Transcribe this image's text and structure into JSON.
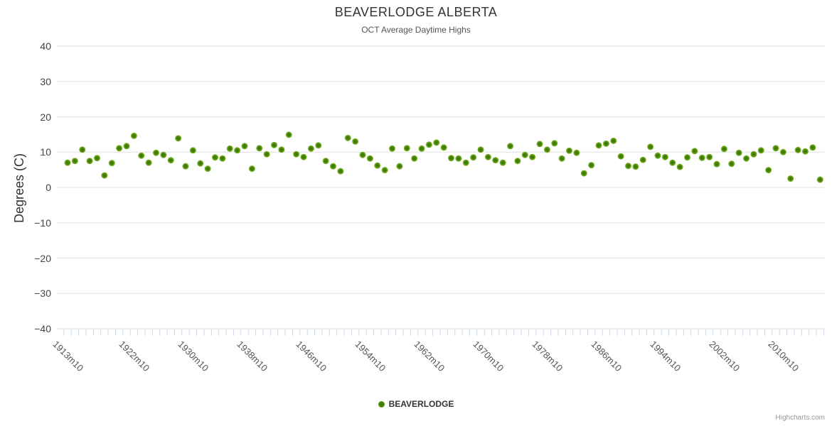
{
  "credits": {
    "label": "Highcharts.com"
  },
  "colors": {
    "marker_core": "#336e00",
    "marker_mid": "#4c8a00",
    "marker_edge": "#84b93c",
    "gridline": "#e0e0e0",
    "tick": "#ccd6eb",
    "title_text": "#333333",
    "axis_label_text": "#555555"
  },
  "chart_data": {
    "type": "scatter",
    "title": "BEAVERLODGE ALBERTA",
    "subtitle": "OCT Average Daytime Highs",
    "xlabel": "",
    "ylabel": "Degrees (C)",
    "ylim": [
      -40,
      40
    ],
    "y_ticks": [
      "40",
      "30",
      "20",
      "10",
      "0",
      "−10",
      "−20",
      "−30",
      "−40"
    ],
    "x_tick_labels": [
      "1913m10",
      "1922m10",
      "1930m10",
      "1938m10",
      "1946m10",
      "1954m10",
      "1962m10",
      "1970m10",
      "1978m10",
      "1986m10",
      "1994m10",
      "2002m10",
      "2010m10"
    ],
    "grid": "horizontal-only",
    "legend_position": "bottom-center",
    "series": [
      {
        "name": "BEAVERLODGE",
        "x_start_year": 1913,
        "x_step": 1,
        "x_format": "YYYYm10",
        "values": [
          7.0,
          7.5,
          10.7,
          7.5,
          8.3,
          3.4,
          6.9,
          11.1,
          11.7,
          14.6,
          9.0,
          7.0,
          9.8,
          9.2,
          7.7,
          13.9,
          6.0,
          10.5,
          6.8,
          5.3,
          8.5,
          8.2,
          11.0,
          10.5,
          11.7,
          5.3,
          11.1,
          9.4,
          12.0,
          10.7,
          14.9,
          9.4,
          8.6,
          11.0,
          11.9,
          7.5,
          6.0,
          4.6,
          14.0,
          13.0,
          9.2,
          8.2,
          6.2,
          4.9,
          11.0,
          6.0,
          11.1,
          8.2,
          11.0,
          12.1,
          12.7,
          11.3,
          8.3,
          8.2,
          7.0,
          8.5,
          10.7,
          8.6,
          7.7,
          7.0,
          11.7,
          7.5,
          9.2,
          8.6,
          12.3,
          10.7,
          12.5,
          8.2,
          10.4,
          9.8,
          4.0,
          6.3,
          11.9,
          12.4,
          13.2,
          8.8,
          6.1,
          5.9,
          7.8,
          11.5,
          9.0,
          8.6,
          7.0,
          5.8,
          8.5,
          10.3,
          8.4,
          8.6,
          6.6,
          10.9,
          6.7,
          9.8,
          8.2,
          9.4,
          10.5,
          4.9,
          11.1,
          10.0,
          2.5,
          10.6,
          10.2,
          11.3,
          2.2
        ]
      }
    ]
  }
}
